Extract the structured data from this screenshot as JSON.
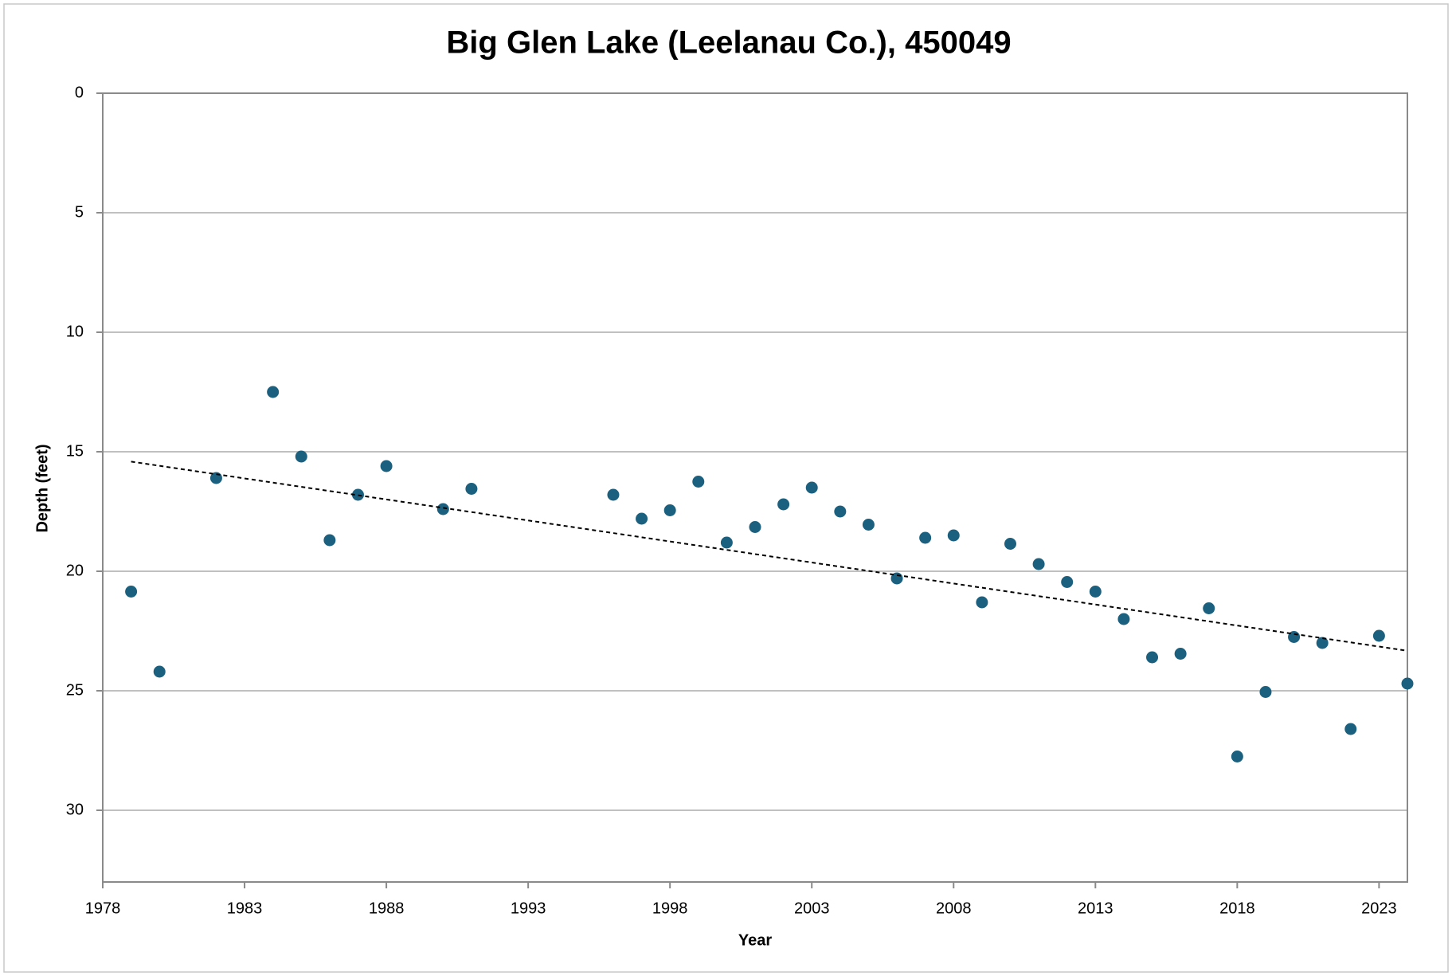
{
  "chart_data": {
    "type": "scatter",
    "title": "Big Glen Lake (Leelanau Co.), 450049",
    "x_label": "Year",
    "y_label": "Depth (feet)",
    "x": [
      1979,
      1980,
      1982,
      1984,
      1985,
      1986,
      1987,
      1988,
      1990,
      1991,
      1996,
      1997,
      1998,
      1999,
      2000,
      2001,
      2002,
      2003,
      2004,
      2005,
      2006,
      2007,
      2008,
      2009,
      2010,
      2011,
      2012,
      2013,
      2014,
      2015,
      2016,
      2017,
      2018,
      2019,
      2020,
      2021,
      2022,
      2023,
      2024
    ],
    "values": [
      20.85,
      24.2,
      16.1,
      12.5,
      15.2,
      18.7,
      16.8,
      15.6,
      17.4,
      16.55,
      16.8,
      17.8,
      17.45,
      16.25,
      18.8,
      18.15,
      17.2,
      16.5,
      17.5,
      18.05,
      20.3,
      18.6,
      18.5,
      21.3,
      18.85,
      19.7,
      20.45,
      20.85,
      22.0,
      23.6,
      23.45,
      21.55,
      27.75,
      25.05,
      22.75,
      23.0,
      26.6,
      22.7,
      24.7
    ],
    "color": "#1b607e",
    "xlim": [
      1978,
      2024
    ],
    "xticks": [
      1978,
      1983,
      1988,
      1993,
      1998,
      2003,
      2008,
      2013,
      2018,
      2023
    ],
    "ylim": [
      0,
      33
    ],
    "yticks": [
      0,
      5,
      10,
      15,
      20,
      25,
      30
    ],
    "y_inverted": true,
    "grid": true,
    "trendline": true
  }
}
